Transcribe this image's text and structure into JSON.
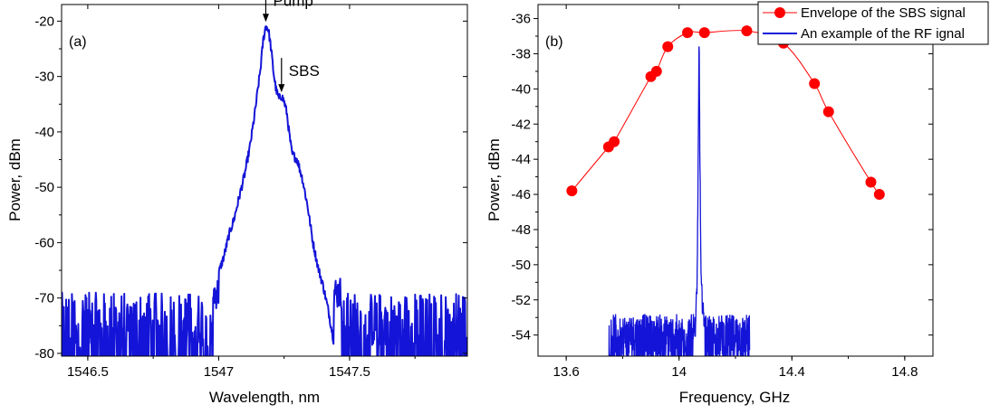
{
  "chart_data": [
    {
      "panel_label": "(a)",
      "type": "line",
      "xlabel": "Wavelength, nm",
      "ylabel": "Power, dBm",
      "xlim": [
        1546.4,
        1547.95
      ],
      "ylim": [
        -80.5,
        -17
      ],
      "x_ticks": [
        1546.5,
        1547,
        1547.5
      ],
      "x_tick_labels": [
        "1546.5",
        "1547",
        "1547.5"
      ],
      "y_ticks": [
        -80,
        -70,
        -60,
        -50,
        -40,
        -30,
        -20
      ],
      "y_tick_labels": [
        "-80",
        "-70",
        "-60",
        "-50",
        "-40",
        "-30",
        "-20"
      ],
      "grid": false,
      "series": [
        {
          "color": "#1414d8",
          "x": [
            1547.0,
            1547.02,
            1547.04,
            1547.06,
            1547.08,
            1547.1,
            1547.12,
            1547.14,
            1547.16,
            1547.17,
            1547.18,
            1547.19,
            1547.2,
            1547.21,
            1547.22,
            1547.23,
            1547.24,
            1547.25,
            1547.26,
            1547.27,
            1547.28,
            1547.3,
            1547.32,
            1547.34,
            1547.36,
            1547.38,
            1547.4,
            1547.42,
            1547.44
          ],
          "y": [
            -65.5,
            -62.5,
            -58.5,
            -55.5,
            -51.5,
            -47.5,
            -42.5,
            -36,
            -28.5,
            -23.5,
            -20.8,
            -21.5,
            -25,
            -29.5,
            -32.5,
            -34,
            -33.5,
            -34.5,
            -36.5,
            -40.5,
            -44,
            -45,
            -48.5,
            -53.5,
            -60,
            -64.5,
            -68,
            -72.5,
            -78
          ]
        }
      ],
      "annotations": [
        {
          "text": "Pump",
          "x": 1547.18,
          "y": -20.8
        },
        {
          "text": "SBS",
          "x": 1547.24,
          "y": -33.5
        }
      ]
    },
    {
      "panel_label": "(b)",
      "type": "line",
      "xlabel": "Frequency, GHz",
      "ylabel": "Power, dBm",
      "xlim": [
        13.5,
        14.9
      ],
      "ylim": [
        -55.2,
        -35.2
      ],
      "x_ticks": [
        13.6,
        14,
        14.4,
        14.8
      ],
      "x_tick_labels": [
        "13.6",
        "14",
        "14.4",
        "14.8"
      ],
      "y_ticks": [
        -54,
        -52,
        -50,
        -48,
        -46,
        -44,
        -42,
        -40,
        -38,
        -36
      ],
      "y_tick_labels": [
        "-54",
        "-52",
        "-50",
        "-48",
        "-46",
        "-44",
        "-42",
        "-40",
        "-38",
        "-36"
      ],
      "grid": false,
      "legend_position": "top-right",
      "series": [
        {
          "name": "Envelope of the SBS signal",
          "color": "#ff0000",
          "marker": "circle",
          "x": [
            13.62,
            13.75,
            13.77,
            13.9,
            13.92,
            13.96,
            14.03,
            14.09,
            14.24,
            14.37,
            14.48,
            14.53,
            14.68,
            14.71
          ],
          "y": [
            -45.8,
            -43.3,
            -43.0,
            -39.3,
            -39.0,
            -37.6,
            -36.8,
            -36.8,
            -36.7,
            -37.4,
            -39.7,
            -41.3,
            -45.3,
            -46.0
          ]
        },
        {
          "name": "An example of the RF ignal",
          "color": "#1414d8",
          "x": [
            13.75,
            14.058,
            14.064,
            14.068,
            14.071,
            14.074,
            14.078,
            14.084,
            14.092,
            14.25
          ],
          "y": [
            -53.5,
            -53.5,
            -51,
            -44,
            -37.2,
            -44,
            -51,
            -52.5,
            -53.5,
            -53.5
          ],
          "noise_floor": [
            -55.2,
            -52.8
          ]
        }
      ]
    }
  ]
}
